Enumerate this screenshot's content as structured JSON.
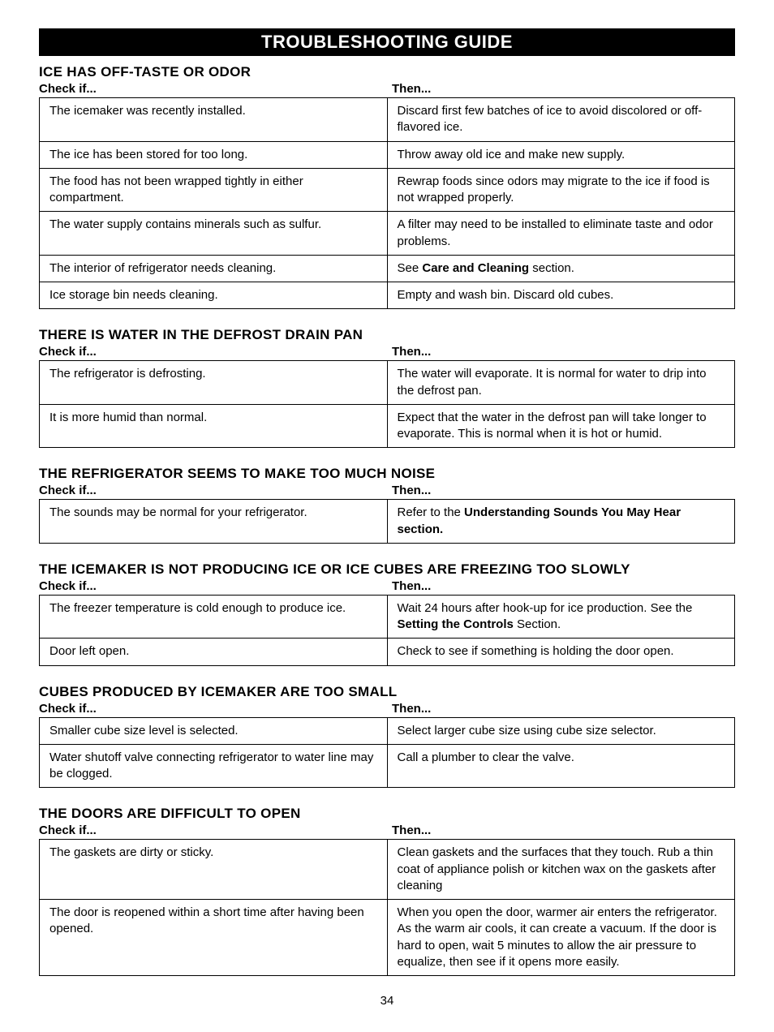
{
  "banner": "TROUBLESHOOTING GUIDE",
  "header_check": "Check if...",
  "header_then": "Then...",
  "page_number": "34",
  "sections": [
    {
      "title": "ICE HAS OFF-TASTE OR ODOR",
      "rows": [
        {
          "check": "The icemaker was recently installed.",
          "then_pre": "Discard first few batches of ice to avoid discolored or off-flavored ice."
        },
        {
          "check": "The ice has been stored for too long.",
          "then_pre": "Throw away old ice and make new supply."
        },
        {
          "check": "The food has not been wrapped tightly in either compartment.",
          "then_pre": "Rewrap foods since odors may migrate to the ice if food is not wrapped properly."
        },
        {
          "check": "The water supply contains minerals such as sulfur.",
          "then_pre": "A filter may need to be installed to eliminate taste and odor problems."
        },
        {
          "check": "The interior of refrigerator needs cleaning.",
          "then_pre": "See ",
          "then_bold": "Care and Cleaning",
          "then_post": " section."
        },
        {
          "check": "Ice storage bin needs cleaning.",
          "then_pre": "Empty and wash bin. Discard old cubes."
        }
      ]
    },
    {
      "title": "THERE IS WATER IN THE DEFROST DRAIN PAN",
      "rows": [
        {
          "check": "The refrigerator is defrosting.",
          "then_pre": "The water will evaporate. It is normal for water to drip into the defrost pan."
        },
        {
          "check": "It is more humid than normal.",
          "then_pre": "Expect that the water in the defrost pan will take longer to evaporate. This is normal when it is hot or humid."
        }
      ]
    },
    {
      "title": "THE REFRIGERATOR SEEMS TO MAKE TOO MUCH NOISE",
      "rows": [
        {
          "check": "The sounds may be normal for your refrigerator.",
          "then_pre": "Refer to the ",
          "then_bold": "Understanding Sounds You May Hear section."
        }
      ]
    },
    {
      "title": "THE ICEMAKER IS NOT PRODUCING ICE OR ICE CUBES ARE FREEZING TOO SLOWLY",
      "rows": [
        {
          "check": "The freezer temperature is cold enough to produce ice.",
          "then_pre": "Wait 24 hours after hook-up for ice production. See the ",
          "then_bold": "Setting the Controls",
          "then_post": " Section."
        },
        {
          "check": "Door left open.",
          "then_pre": "Check to see if something is holding the door open."
        }
      ]
    },
    {
      "title": "CUBES PRODUCED BY ICEMAKER ARE TOO SMALL",
      "rows": [
        {
          "check": "Smaller cube size level is selected.",
          "then_pre": "Select larger cube size using cube size selector."
        },
        {
          "check": "Water shutoff valve connecting refrigerator to water line may be clogged.",
          "then_pre": "Call a plumber to clear the valve."
        }
      ]
    },
    {
      "title": "THE DOORS ARE DIFFICULT TO OPEN",
      "rows": [
        {
          "check": "The gaskets are dirty or sticky.",
          "then_pre": "Clean gaskets and the surfaces that they touch. Rub a thin coat of appliance polish or kitchen wax on the gaskets after cleaning"
        },
        {
          "check": "The door is reopened within a short time after having been opened.",
          "then_pre": "When you open the door, warmer air enters the refrigerator. As the warm air cools, it can create a vacuum. If the door is hard to open, wait 5 minutes to allow the air pressure to equalize, then see if it opens more easily."
        }
      ]
    }
  ]
}
